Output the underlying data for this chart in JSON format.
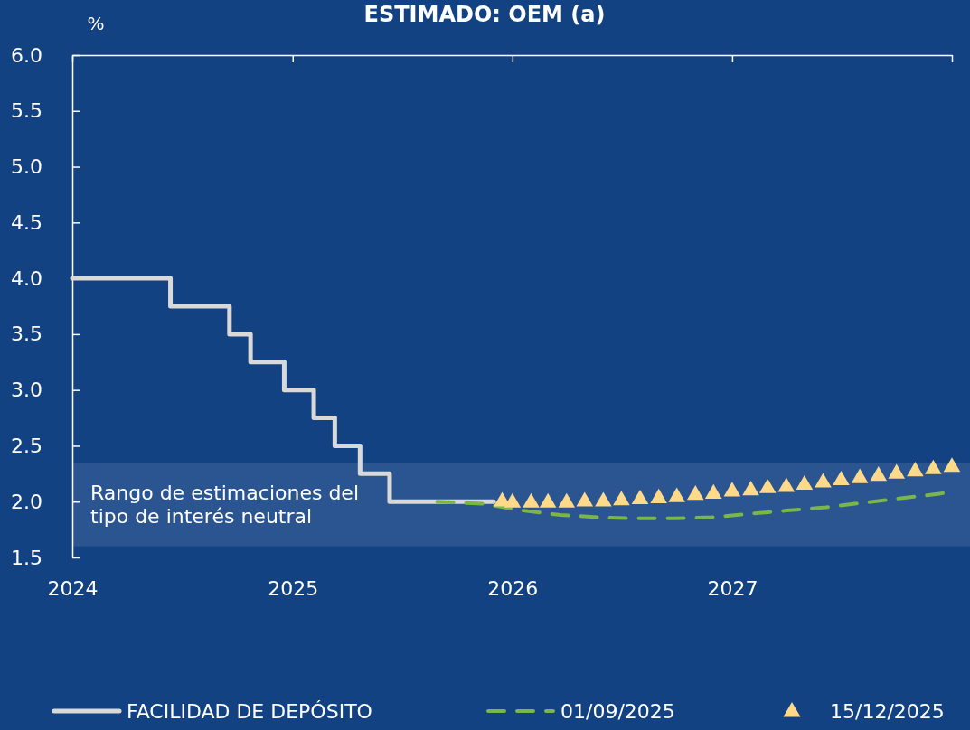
{
  "chart_data": {
    "type": "line",
    "title": "ESTIMADO: OEM (a)",
    "ylabel": "%",
    "xlim": [
      "2024-01-01",
      "2028-01-01"
    ],
    "xticks": [
      {
        "value": "2024-01-01",
        "label": "2024"
      },
      {
        "value": "2025-01-01",
        "label": "2025"
      },
      {
        "value": "2026-01-01",
        "label": "2026"
      },
      {
        "value": "2027-01-01",
        "label": "2027"
      },
      {
        "value": "2028-01-01",
        "label": null
      }
    ],
    "ylim": [
      1.5,
      6.0
    ],
    "yticks": [
      {
        "value": 1.5,
        "label": "1.5"
      },
      {
        "value": 2.0,
        "label": "2.0"
      },
      {
        "value": 2.5,
        "label": "2.5"
      },
      {
        "value": 3.0,
        "label": "3.0"
      },
      {
        "value": 3.5,
        "label": "3.5"
      },
      {
        "value": 4.0,
        "label": "4.0"
      },
      {
        "value": 4.5,
        "label": "4.5"
      },
      {
        "value": 5.0,
        "label": "5.0"
      },
      {
        "value": 5.5,
        "label": "5.5"
      },
      {
        "value": 6.0,
        "label": "6.0"
      }
    ],
    "grid": false,
    "legend": "bottom",
    "bands": [
      {
        "axis": "y",
        "from": 1.6,
        "to": 2.35,
        "label": "Rango de estimaciones del tipo de interés neutral",
        "color": "#2a5590"
      }
    ],
    "series": [
      {
        "name": "FACILIDAD DE DEPÓSITO",
        "type": "step",
        "color": "#d9d9d9",
        "line_style": "solid",
        "marker": "none",
        "x": [
          "2024-01-01",
          "2024-06-12",
          "2024-09-18",
          "2024-10-23",
          "2024-12-18",
          "2025-02-05",
          "2025-03-12",
          "2025-04-23",
          "2025-06-11",
          "2025-12-01"
        ],
        "values": [
          4.0,
          3.75,
          3.5,
          3.25,
          3.0,
          2.75,
          2.5,
          2.25,
          2.0,
          2.0
        ]
      },
      {
        "name": "01/09/2025",
        "color": "#7ab648",
        "line_style": "dashed",
        "marker": "none",
        "x": [
          "2025-08-29",
          "2025-11-15",
          "2026-01-19",
          "2026-03-22",
          "2026-05-25",
          "2026-07-24",
          "2026-09-27",
          "2026-11-28",
          "2027-01-30",
          "2027-04-01",
          "2027-06-06",
          "2027-08-07",
          "2027-10-08",
          "2027-12-11",
          "2028-01-01"
        ],
        "values": [
          2.0,
          1.98,
          1.92,
          1.88,
          1.86,
          1.85,
          1.85,
          1.86,
          1.89,
          1.92,
          1.95,
          1.99,
          2.03,
          2.07,
          2.09
        ]
      },
      {
        "name": "15/12/2025",
        "type": "scatter",
        "color": "#ffd98a",
        "marker": "triangle",
        "x": [
          "2025-12-15",
          "2026-01-01",
          "2026-02-01",
          "2026-03-01",
          "2026-04-01",
          "2026-05-01",
          "2026-06-01",
          "2026-07-01",
          "2026-08-01",
          "2026-09-01",
          "2026-10-01",
          "2026-11-01",
          "2026-12-01",
          "2027-01-01",
          "2027-02-01",
          "2027-03-01",
          "2027-04-01",
          "2027-05-01",
          "2027-06-01",
          "2027-07-01",
          "2027-08-01",
          "2027-09-01",
          "2027-10-01",
          "2027-11-01",
          "2027-12-01",
          "2028-01-01"
        ],
        "values": [
          2.0,
          1.99,
          1.99,
          1.99,
          1.99,
          2.0,
          2.0,
          2.01,
          2.02,
          2.03,
          2.04,
          2.06,
          2.07,
          2.09,
          2.1,
          2.12,
          2.13,
          2.15,
          2.17,
          2.19,
          2.21,
          2.23,
          2.25,
          2.27,
          2.29,
          2.31
        ]
      }
    ]
  }
}
